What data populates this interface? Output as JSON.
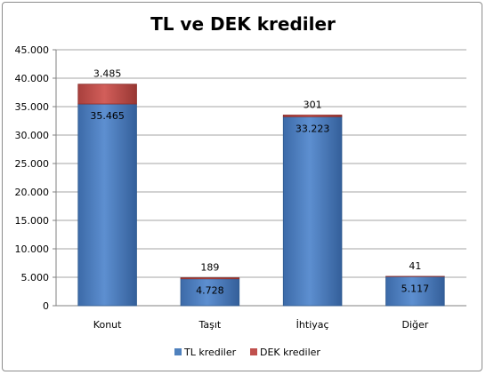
{
  "chart_data": {
    "type": "bar",
    "stacked": true,
    "title": "TL ve DEK krediler",
    "categories": [
      "Konut",
      "Taşıt",
      "İhtiyaç",
      "Diğer"
    ],
    "series": [
      {
        "name": "TL krediler",
        "values": [
          35465,
          4728,
          33223,
          5117
        ],
        "labels": [
          "35.465",
          "4.728",
          "33.223",
          "5.117"
        ],
        "color": "#4f81bd"
      },
      {
        "name": "DEK krediler",
        "values": [
          3485,
          189,
          301,
          41
        ],
        "labels": [
          "3.485",
          "189",
          "301",
          "41"
        ],
        "color": "#c0504d"
      }
    ],
    "ylim": [
      0,
      45000
    ],
    "yticks": [
      0,
      5000,
      10000,
      15000,
      20000,
      25000,
      30000,
      35000,
      40000,
      45000
    ],
    "ytick_labels": [
      "0",
      "5.000",
      "10.000",
      "15.000",
      "20.000",
      "25.000",
      "30.000",
      "35.000",
      "40.000",
      "45.000"
    ],
    "grid": true,
    "legend_position": "bottom"
  }
}
